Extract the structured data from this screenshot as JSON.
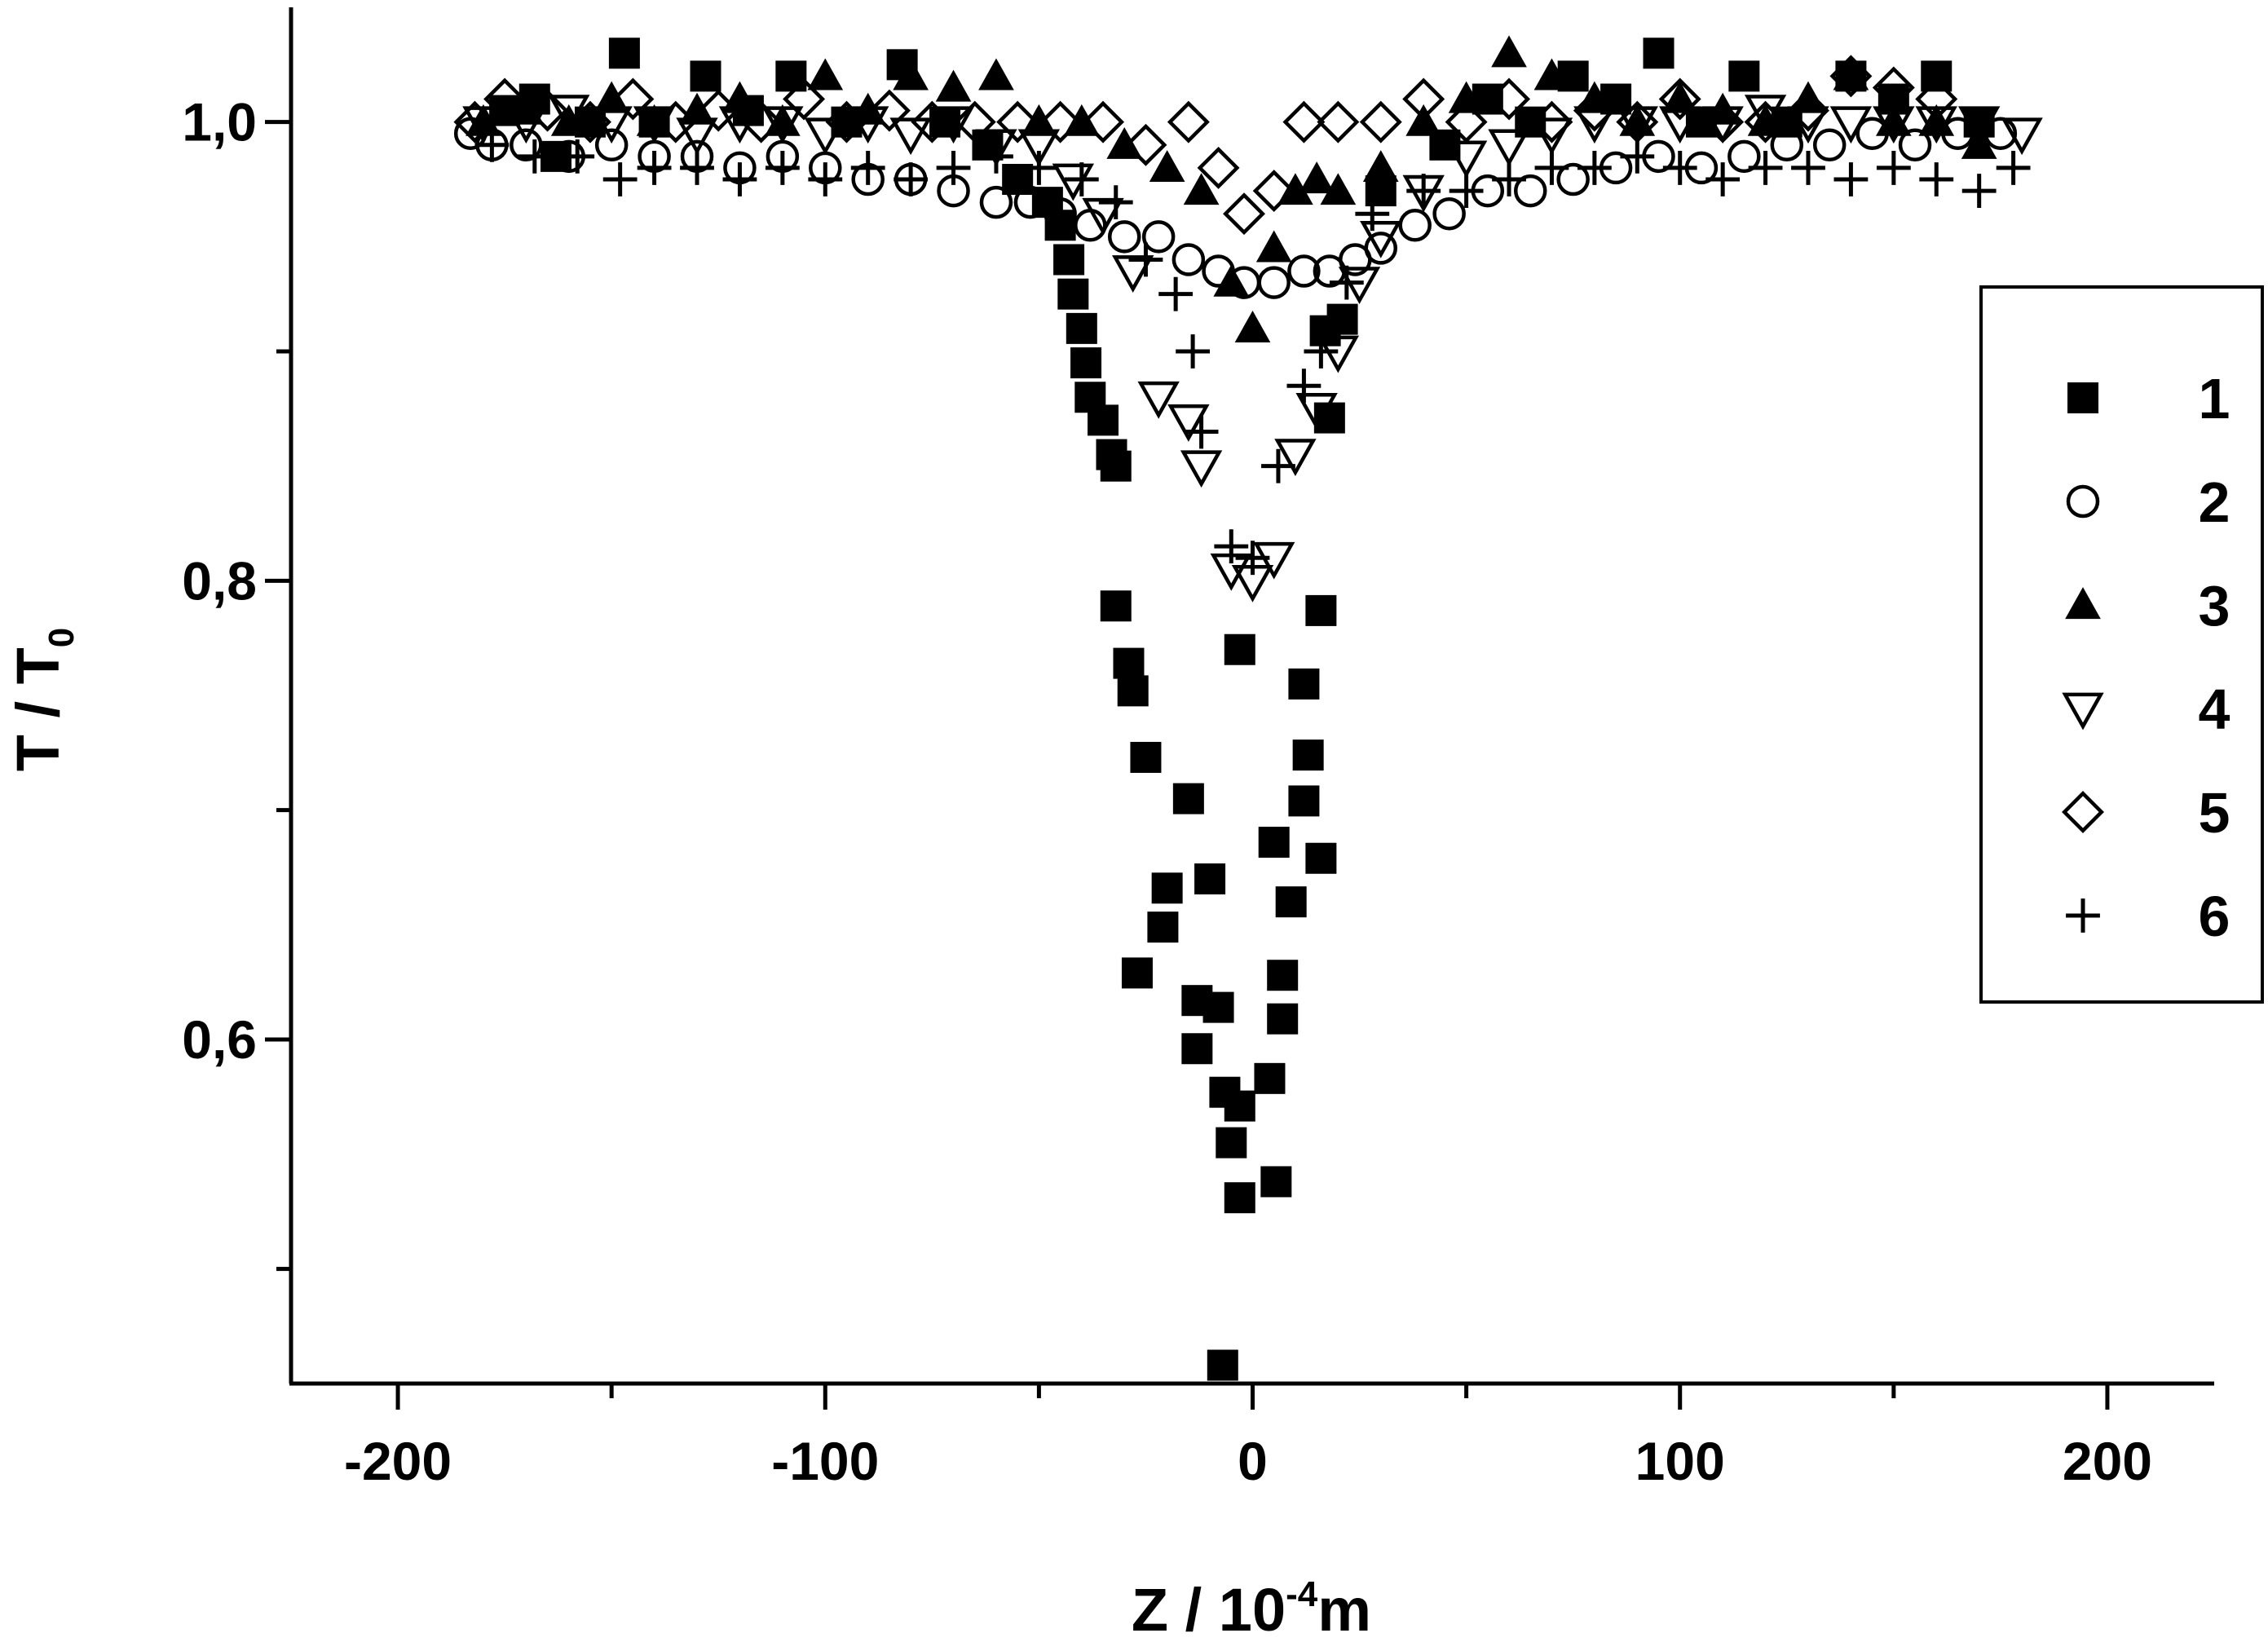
{
  "chart_data": {
    "type": "scatter",
    "xlabel": [
      "Z / 10",
      "-4",
      "m"
    ],
    "ylabel": [
      "T / T",
      "0"
    ],
    "xlim": [
      -225,
      225
    ],
    "ylim": [
      0.45,
      1.05
    ],
    "xticks": [
      -200,
      -100,
      0,
      100,
      200
    ],
    "xminorticks": [
      -150,
      -50,
      50,
      150
    ],
    "yticks": [
      {
        "value": 0.6,
        "label": "0,6"
      },
      {
        "value": 0.8,
        "label": "0,8"
      },
      {
        "value": 1.0,
        "label": "1,0"
      }
    ],
    "yminorticks": [
      0.5,
      0.7,
      0.9
    ],
    "grid": false,
    "legend": "right",
    "series": [
      {
        "name": "1",
        "marker": "square",
        "color": "#000000",
        "x": [
          -175,
          -168,
          -163,
          -155,
          -147,
          -140,
          -128,
          -118,
          -108,
          -95,
          -82,
          -72,
          -62,
          -55,
          -48,
          -45,
          -43,
          -42,
          -40,
          -39,
          -38,
          -35,
          -33,
          -32,
          -32,
          -29,
          -28,
          -25,
          -15,
          -20,
          -21,
          -27,
          -10,
          -13,
          -8,
          -13,
          -6.5,
          -3,
          -5,
          -3,
          5.5,
          -7,
          -3,
          4,
          7,
          7,
          9,
          16,
          5,
          12,
          13,
          12,
          16,
          18,
          17,
          21,
          30,
          45,
          55,
          65,
          75,
          85,
          95,
          105,
          115,
          125,
          140,
          150,
          160,
          170
        ],
        "values": [
          1.005,
          1.01,
          0.985,
          1.0,
          1.03,
          1.0,
          1.02,
          1.005,
          1.02,
          1.0,
          1.025,
          1.0,
          0.99,
          0.975,
          0.965,
          0.955,
          0.94,
          0.925,
          0.91,
          0.895,
          0.88,
          0.87,
          0.855,
          0.85,
          0.789,
          0.764,
          0.752,
          0.723,
          0.705,
          0.666,
          0.649,
          0.629,
          0.67,
          0.617,
          0.614,
          0.596,
          0.577,
          0.571,
          0.555,
          0.531,
          0.538,
          0.458,
          0.77,
          0.583,
          0.609,
          0.628,
          0.66,
          0.679,
          0.686,
          0.704,
          0.724,
          0.755,
          0.787,
          0.871,
          0.909,
          0.914,
          0.97,
          0.99,
          1.01,
          1.0,
          1.02,
          1.01,
          1.03,
          1.0,
          1.02,
          1.0,
          1.02,
          1.01,
          1.02,
          1.0
        ]
      },
      {
        "name": "2",
        "marker": "circle",
        "color": "#000000",
        "x": [
          -183,
          -178,
          -170,
          -160,
          -150,
          -140,
          -130,
          -120,
          -110,
          -100,
          -90,
          -80,
          -70,
          -60,
          -52,
          -45,
          -38,
          -30,
          -22,
          -15,
          -8,
          -2,
          5,
          12,
          18,
          24,
          30,
          38,
          46,
          55,
          65,
          75,
          85,
          95,
          105,
          115,
          125,
          135,
          145,
          155,
          165,
          175
        ],
        "values": [
          0.995,
          0.99,
          0.99,
          0.985,
          0.99,
          0.985,
          0.985,
          0.98,
          0.985,
          0.98,
          0.975,
          0.975,
          0.97,
          0.965,
          0.965,
          0.96,
          0.955,
          0.95,
          0.95,
          0.94,
          0.935,
          0.93,
          0.93,
          0.935,
          0.935,
          0.94,
          0.945,
          0.955,
          0.96,
          0.97,
          0.97,
          0.975,
          0.98,
          0.985,
          0.98,
          0.985,
          0.99,
          0.99,
          0.995,
          0.99,
          0.995,
          0.995
        ]
      },
      {
        "name": "3",
        "marker": "triangle-up",
        "color": "#000000",
        "x": [
          -180,
          -170,
          -160,
          -150,
          -140,
          -130,
          -120,
          -110,
          -100,
          -90,
          -80,
          -70,
          -60,
          -50,
          -40,
          -30,
          -20,
          -12,
          -5,
          0,
          5,
          10,
          15,
          20,
          30,
          40,
          50,
          60,
          70,
          80,
          90,
          100,
          110,
          120,
          130,
          140,
          150,
          160,
          170
        ],
        "values": [
          1.0,
          1.005,
          1.0,
          1.01,
          1.0,
          1.005,
          1.01,
          1.0,
          1.02,
          1.005,
          1.02,
          1.015,
          1.02,
          1.0,
          1.0,
          0.99,
          0.98,
          0.97,
          0.93,
          0.91,
          0.945,
          0.97,
          0.975,
          0.97,
          0.98,
          1.0,
          1.01,
          1.03,
          1.02,
          1.01,
          1.0,
          1.01,
          1.005,
          1.0,
          1.01,
          1.02,
          1.0,
          1.0,
          0.99
        ]
      },
      {
        "name": "4",
        "marker": "triangle-down",
        "color": "#000000",
        "x": [
          -180,
          -170,
          -160,
          -150,
          -140,
          -130,
          -120,
          -110,
          -100,
          -90,
          -80,
          -70,
          -60,
          -50,
          -42,
          -35,
          -28,
          -22,
          -15,
          -12,
          -5,
          0,
          5,
          10,
          15,
          20,
          25,
          30,
          40,
          50,
          60,
          70,
          80,
          90,
          100,
          110,
          120,
          130,
          140,
          150,
          160,
          170,
          180
        ],
        "values": [
          1.0,
          1.0,
          1.005,
          1.0,
          1.0,
          0.995,
          1.0,
          1.0,
          0.995,
          1.0,
          0.995,
          1.0,
          0.99,
          0.99,
          0.975,
          0.96,
          0.935,
          0.88,
          0.87,
          0.85,
          0.805,
          0.8,
          0.81,
          0.855,
          0.875,
          0.9,
          0.93,
          0.95,
          0.97,
          0.985,
          0.99,
          0.995,
          1.0,
          1.0,
          1.0,
          1.0,
          1.005,
          1.0,
          1.0,
          1.0,
          1.0,
          1.0,
          0.995
        ]
      },
      {
        "name": "5",
        "marker": "diamond",
        "color": "#000000",
        "x": [
          -182,
          -175,
          -165,
          -155,
          -145,
          -135,
          -125,
          -115,
          -105,
          -95,
          -85,
          -75,
          -65,
          -55,
          -45,
          -35,
          -25,
          -15,
          -8,
          -2,
          5,
          12,
          20,
          30,
          40,
          50,
          60,
          70,
          80,
          90,
          100,
          110,
          120,
          130,
          140,
          150,
          160
        ],
        "values": [
          1.0,
          1.01,
          1.005,
          1.0,
          1.01,
          1.0,
          1.005,
          1.0,
          1.01,
          1.0,
          1.005,
          1.0,
          1.0,
          1.0,
          1.0,
          1.0,
          0.99,
          1.0,
          0.98,
          0.96,
          0.97,
          1.0,
          1.0,
          1.0,
          1.01,
          1.0,
          1.01,
          1.0,
          1.005,
          1.0,
          1.01,
          1.0,
          1.0,
          1.005,
          1.02,
          1.015,
          1.01
        ]
      },
      {
        "name": "6",
        "marker": "plus",
        "color": "#000000",
        "x": [
          -178,
          -168,
          -158,
          -148,
          -140,
          -130,
          -120,
          -110,
          -100,
          -90,
          -80,
          -70,
          -60,
          -50,
          -40,
          -32,
          -25,
          -18,
          -14,
          -12,
          -5,
          0,
          6,
          12,
          16,
          22,
          28,
          40,
          50,
          60,
          70,
          80,
          90,
          100,
          110,
          120,
          130,
          140,
          150,
          160,
          170,
          178
        ],
        "values": [
          0.99,
          0.985,
          0.985,
          0.975,
          0.98,
          0.98,
          0.975,
          0.98,
          0.975,
          0.98,
          0.975,
          0.98,
          0.985,
          0.98,
          0.975,
          0.965,
          0.94,
          0.925,
          0.9,
          0.865,
          0.815,
          0.81,
          0.85,
          0.885,
          0.9,
          0.93,
          0.96,
          0.97,
          0.97,
          0.975,
          0.98,
          0.98,
          0.985,
          0.98,
          0.975,
          0.98,
          0.98,
          0.975,
          0.98,
          0.975,
          0.97,
          0.98
        ]
      }
    ]
  }
}
